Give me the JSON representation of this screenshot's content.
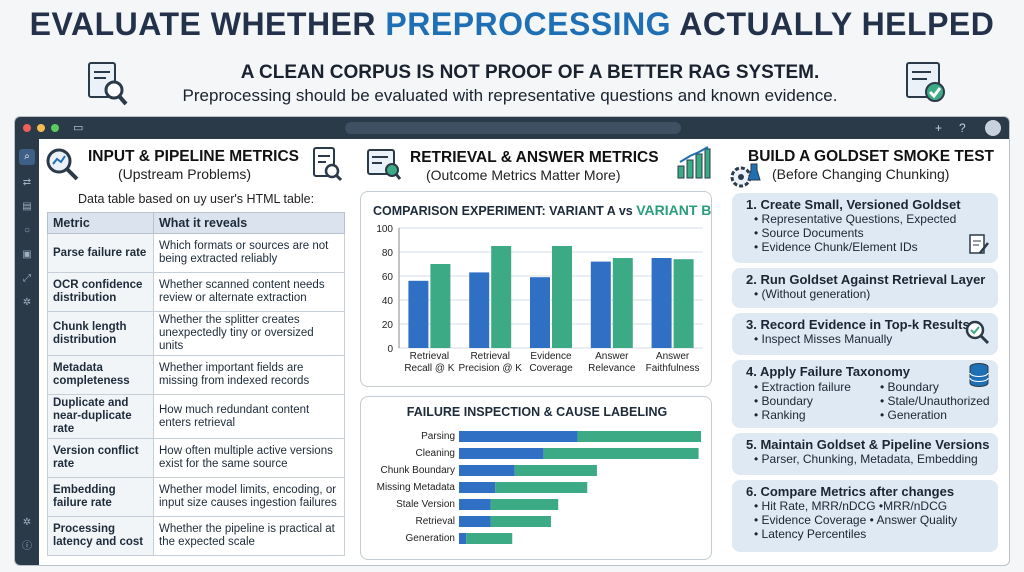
{
  "header": {
    "title_part1": "EVALUATE WHETHER ",
    "title_highlight": "PREPROCESSING",
    "title_part2": " ACTUALLY HELPED",
    "subtitle_bold": "A CLEAN CORPUS IS NOT PROOF OF A BETTER RAG SYSTEM.",
    "subtitle": "Preprocessing should be evaluated with representative questions and known evidence."
  },
  "window": {
    "icons": [
      "+",
      "?"
    ]
  },
  "left_panel": {
    "heading": "INPUT & PIPELINE METRICS",
    "subheading": "(Upstream Problems)",
    "caption": "Data table based on uy user's HTML table:",
    "columns": [
      "Metric",
      "What it reveals"
    ],
    "rows": [
      {
        "metric": "Parse failure rate",
        "reveals": "Which formats or sources are not being extracted reliably"
      },
      {
        "metric": "OCR confidence distribution",
        "reveals": "Whether scanned content needs review or alternate extraction"
      },
      {
        "metric": "Chunk length distribution",
        "reveals": "Whether the splitter creates unexpectedly tiny or oversized units"
      },
      {
        "metric": "Metadata completeness",
        "reveals": "Whether important fields are missing from indexed records"
      },
      {
        "metric": "Duplicate and near-duplicate rate",
        "reveals": "How much redundant content enters retrieval"
      },
      {
        "metric": "Version conflict rate",
        "reveals": "How often multiple active versions exist for the same source"
      },
      {
        "metric": "Embedding failure rate",
        "reveals": "Whether model limits, encoding, or input size causes ingestion failures"
      },
      {
        "metric": "Processing latency and cost",
        "reveals": "Whether the pipeline is practical at the expected scale"
      }
    ]
  },
  "mid_panel": {
    "heading": "RETRIEVAL & ANSWER METRICS",
    "subheading": "(Outcome Metrics Matter More)"
  },
  "right_panel": {
    "heading": "BUILD A GOLDSET SMOKE TEST",
    "subheading": "(Before Changing Chunking)",
    "steps": [
      {
        "title": "1. Create Small, Versioned Goldset",
        "lines": [
          "• Representative Questions, Expected",
          "• Source Documents",
          "• Evidence Chunk/Element IDs"
        ]
      },
      {
        "title": "2. Run Goldset Against Retrieval Layer",
        "lines": [
          "• (Without generation)"
        ]
      },
      {
        "title": "3. Record Evidence in Top-k Results",
        "lines": [
          "• Inspect Misses Manually"
        ]
      },
      {
        "title": "4. Apply Failure Taxonomy",
        "lines": [
          "• Extraction failure",
          "• Boundary",
          "• Ranking"
        ],
        "lines2": [
          "• Boundary",
          "• Stale/Unauthorized",
          "• Generation"
        ]
      },
      {
        "title": "5. Maintain Goldset & Pipeline Versions",
        "lines": [
          "• Parser, Chunking, Metadata, Embedding"
        ]
      },
      {
        "title": "6. Compare Metrics after changes",
        "lines": [
          "• Hit Rate, MRR/nDCG  •MRR/nDCG",
          "• Evidence Coverage  • Answer Quality",
          "• Latency Percentiles"
        ]
      }
    ]
  },
  "colors": {
    "blue": "#2f6fc4",
    "green": "#3daa86",
    "accent": "#1f6fb5"
  },
  "chart_data": [
    {
      "type": "bar",
      "title_part1": "COMPARISON EXPERIMENT: VARIANT A vs ",
      "title_part2": "VARIANT B",
      "categories": [
        "Retrieval Recall @ K",
        "Retrieval Precision @ K",
        "Evidence Coverage",
        "Answer Relevance",
        "Answer Faithfulness"
      ],
      "series": [
        {
          "name": "VARIANT A",
          "values": [
            56,
            63,
            59,
            72,
            75
          ]
        },
        {
          "name": "VARIANT B",
          "values": [
            70,
            85,
            85,
            75,
            74
          ]
        }
      ],
      "ylim": [
        0,
        100
      ],
      "yticks": [
        0,
        20,
        40,
        60,
        80,
        100
      ],
      "grid": true
    },
    {
      "type": "bar",
      "orientation": "horizontal",
      "title": "FAILURE INSPECTION & CAUSE LABELING",
      "categories": [
        "Parsing",
        "Cleaning",
        "Chunk Boundary",
        "Missing Metadata",
        "Stale Version",
        "Retrieval",
        "Generation"
      ],
      "series": [
        {
          "values": [
            49,
            35,
            23,
            15,
            13,
            13,
            3
          ]
        },
        {
          "values": [
            51,
            64,
            34,
            38,
            28,
            25,
            19
          ]
        }
      ],
      "xlim": [
        0,
        100
      ]
    }
  ]
}
